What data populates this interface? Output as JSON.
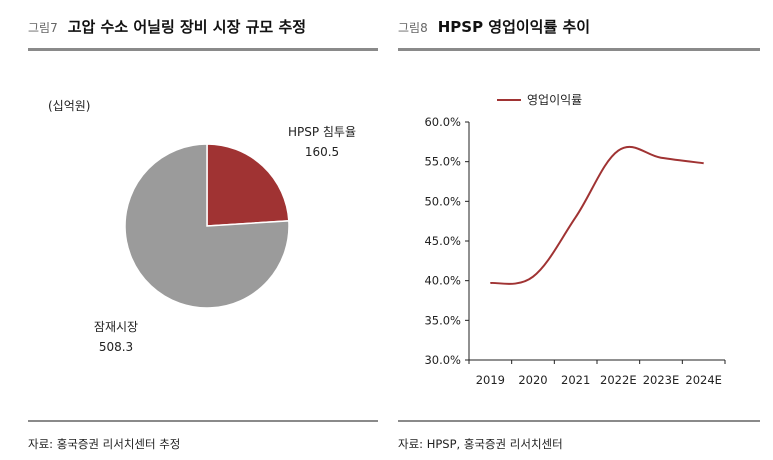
{
  "left": {
    "fig_num": "그림7",
    "title": "고압 수소 어닐링 장비 시장 규모 추정",
    "source": "자료: 홍국증권 리서치센터 추정",
    "chart_data": {
      "type": "pie",
      "unit": "(십억원)",
      "slices": [
        {
          "label": "HPSP 침투율",
          "value": 160.5,
          "value_label": "160.5",
          "color": "#A03333"
        },
        {
          "label": "잠재시장",
          "value": 508.3,
          "value_label": "508.3",
          "color": "#9B9B9B"
        }
      ]
    }
  },
  "right": {
    "fig_num": "그림8",
    "title": "HPSP 영업이익률 추이",
    "source": "자료: HPSP, 홍국증권 리서치센터",
    "chart_data": {
      "type": "line",
      "categories": [
        "2019",
        "2020",
        "2021",
        "2022E",
        "2023E",
        "2024E"
      ],
      "series": [
        {
          "name": "영업이익률",
          "color": "#A03333",
          "values": [
            39.7,
            40.5,
            48.0,
            56.4,
            55.5,
            54.8
          ]
        }
      ],
      "ylim": [
        30.0,
        60.0
      ],
      "yticks": [
        "60.0%",
        "55.0%",
        "50.0%",
        "45.0%",
        "40.0%",
        "35.0%",
        "30.0%"
      ],
      "ytick_values": [
        60,
        55,
        50,
        45,
        40,
        35,
        30
      ],
      "grid": false,
      "legend_position": "top-left"
    }
  }
}
